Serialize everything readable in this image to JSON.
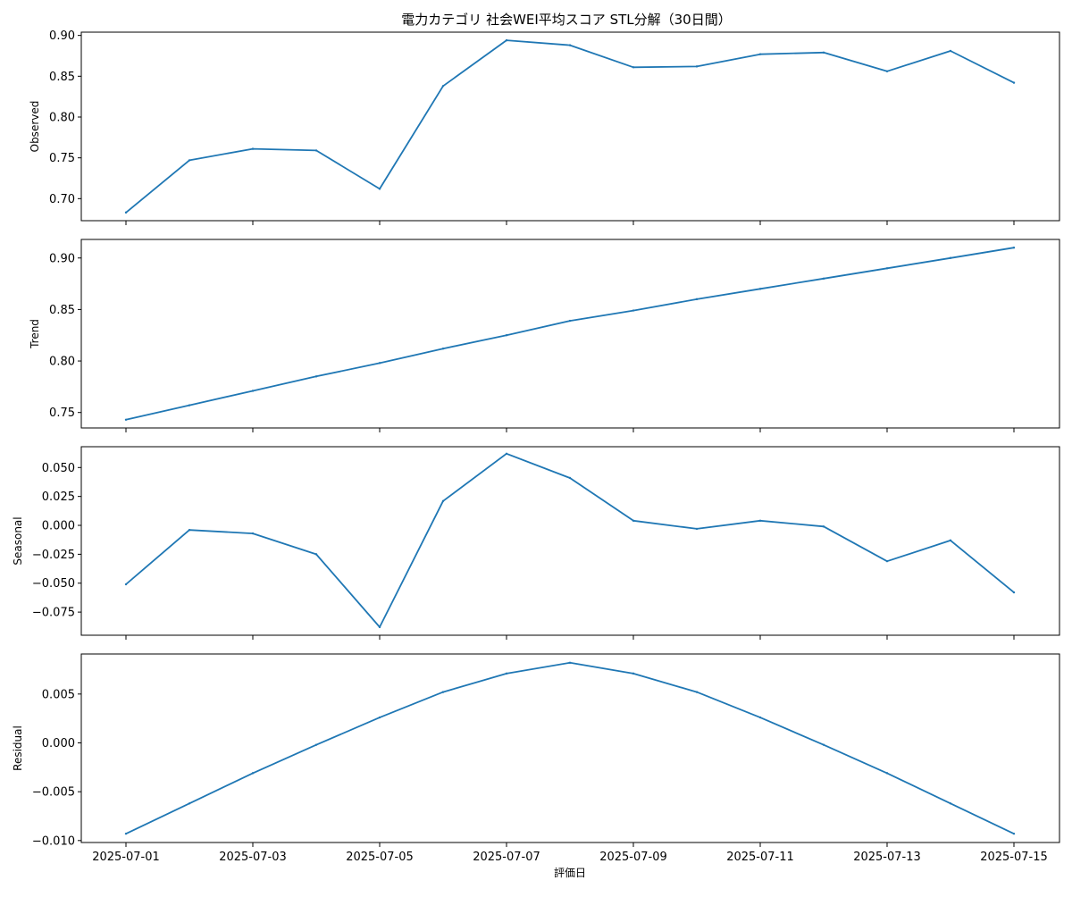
{
  "chart_data": {
    "type": "line",
    "title": "電力カテゴリ 社会WEI平均スコア STL分解（30日間）",
    "xlabel": "評価日",
    "x": [
      "2025-07-01",
      "2025-07-02",
      "2025-07-03",
      "2025-07-04",
      "2025-07-05",
      "2025-07-06",
      "2025-07-07",
      "2025-07-08",
      "2025-07-09",
      "2025-07-10",
      "2025-07-11",
      "2025-07-12",
      "2025-07-13",
      "2025-07-14",
      "2025-07-15"
    ],
    "x_tick_labels": [
      "2025-07-01",
      "2025-07-03",
      "2025-07-05",
      "2025-07-07",
      "2025-07-09",
      "2025-07-11",
      "2025-07-13",
      "2025-07-15"
    ],
    "line_color": "#1f77b4",
    "grid": false,
    "panels": [
      {
        "name": "observed",
        "ylabel": "Observed",
        "ylim": [
          0.673,
          0.904
        ],
        "yticks": [
          0.7,
          0.75,
          0.8,
          0.85,
          0.9
        ],
        "ytick_labels": [
          "0.70",
          "0.75",
          "0.80",
          "0.85",
          "0.90"
        ],
        "values": [
          0.683,
          0.747,
          0.761,
          0.759,
          0.712,
          0.838,
          0.894,
          0.888,
          0.861,
          0.862,
          0.877,
          0.879,
          0.856,
          0.881,
          0.842
        ]
      },
      {
        "name": "trend",
        "ylabel": "Trend",
        "ylim": [
          0.735,
          0.918
        ],
        "yticks": [
          0.75,
          0.8,
          0.85,
          0.9
        ],
        "ytick_labels": [
          "0.75",
          "0.80",
          "0.85",
          "0.90"
        ],
        "values": [
          0.743,
          0.757,
          0.771,
          0.785,
          0.798,
          0.812,
          0.825,
          0.839,
          0.849,
          0.86,
          0.87,
          0.88,
          0.89,
          0.9,
          0.91
        ]
      },
      {
        "name": "seasonal",
        "ylabel": "Seasonal",
        "ylim": [
          -0.095,
          0.068
        ],
        "yticks": [
          -0.075,
          -0.05,
          -0.025,
          0.0,
          0.025,
          0.05
        ],
        "ytick_labels": [
          "−0.075",
          "−0.050",
          "−0.025",
          "0.000",
          "0.025",
          "0.050"
        ],
        "values": [
          -0.051,
          -0.004,
          -0.007,
          -0.025,
          -0.088,
          0.021,
          0.062,
          0.041,
          0.004,
          -0.003,
          0.004,
          -0.001,
          -0.031,
          -0.013,
          -0.058
        ]
      },
      {
        "name": "residual",
        "ylabel": "Residual",
        "ylim": [
          -0.0102,
          0.0091
        ],
        "yticks": [
          -0.01,
          -0.005,
          0.0,
          0.005
        ],
        "ytick_labels": [
          "−0.010",
          "−0.005",
          "0.000",
          "0.005"
        ],
        "values": [
          -0.0093,
          -0.0062,
          -0.0031,
          -0.0002,
          0.0026,
          0.0052,
          0.0071,
          0.0082,
          0.0071,
          0.0052,
          0.0026,
          -0.0002,
          -0.0031,
          -0.0062,
          -0.0093
        ]
      }
    ]
  }
}
